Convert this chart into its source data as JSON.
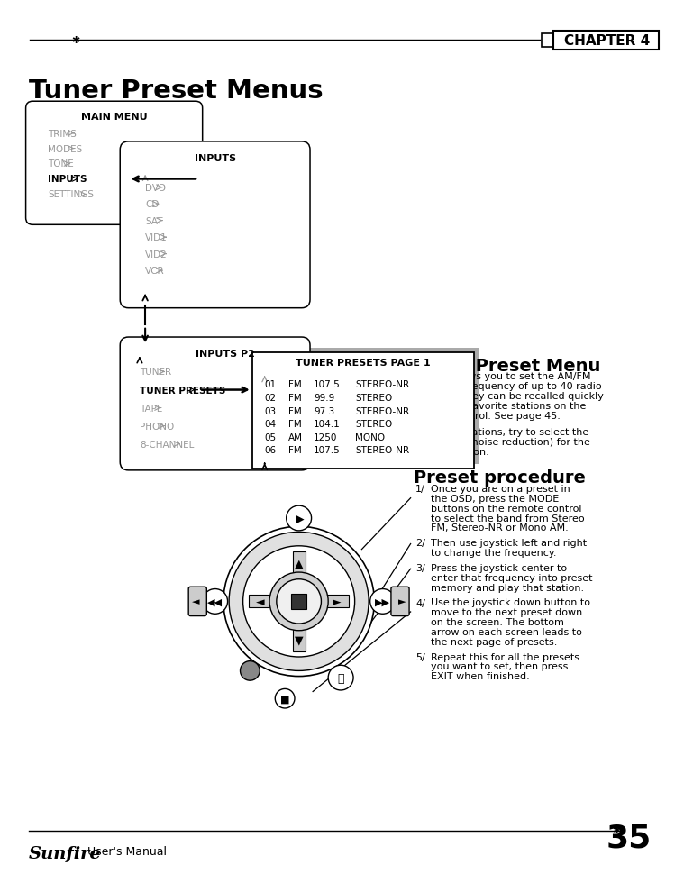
{
  "title": "Tuner Preset Menus",
  "chapter": "CHAPTER 4",
  "page_number": "35",
  "footer_brand": "Sunfire",
  "footer_text": "User's Manual",
  "main_menu_title": "MAIN MENU",
  "main_menu_items": [
    "TRIMS",
    "MODES",
    "TONE",
    "INPUTS",
    "SETTINGS"
  ],
  "inputs_title": "INPUTS",
  "inputs_items": [
    "DVD",
    "CD",
    "SAT",
    "VID1",
    "VID2",
    "VCR"
  ],
  "inputs_p2_title": "INPUTS P2",
  "inputs_p2_items": [
    "TUNER",
    "TUNER PRESETS",
    "TAPE",
    "PHONO",
    "8-CHANNEL"
  ],
  "tuner_presets_title": "TUNER PRESETS PAGE 1",
  "tuner_presets_rows": [
    [
      "01",
      "FM",
      "107.5",
      "STEREO-NR"
    ],
    [
      "02",
      "FM",
      "99.9",
      "STEREO"
    ],
    [
      "03",
      "FM",
      "97.3",
      "STEREO-NR"
    ],
    [
      "04",
      "FM",
      "104.1",
      "STEREO"
    ],
    [
      "05",
      "AM",
      "1250",
      "MONO"
    ],
    [
      "06",
      "FM",
      "107.5",
      "STEREO-NR"
    ]
  ],
  "right_title1": "Tuner Preset Menu",
  "right_para1a": "    This allows you to set the AM/FM",
  "right_para1b": "band and frequency of up to 40 radio",
  "right_para1c": "stations. They can be recalled quickly",
  "right_para1d": "and set as favorite stations on the",
  "right_para1e": "remote control. See page 45.",
  "right_para2a": "    For FM stations, try to select the",
  "right_para2b": "Stereo-NR (noise reduction) for the",
  "right_para2c": "best reception.",
  "right_title2": "Preset procedure",
  "step1_num": "1/",
  "step1_lines": [
    "Once you are on a preset in",
    "the OSD, press the MODE",
    "buttons on the remote control",
    "to select the band from Stereo",
    "FM, Stereo-NR or Mono AM."
  ],
  "step2_num": "2/",
  "step2_lines": [
    "Then use joystick left and right",
    "to change the frequency."
  ],
  "step3_num": "3/",
  "step3_lines": [
    "Press the joystick center to",
    "enter that frequency into preset",
    "memory and play that station."
  ],
  "step4_num": "4/",
  "step4_lines": [
    "Use the joystick down button to",
    "move to the next preset down",
    "on the screen. The bottom",
    "arrow on each screen leads to",
    "the next page of presets."
  ],
  "step5_num": "5/",
  "step5_lines": [
    "Repeat this for all the presets",
    "you want to set, then press",
    "EXIT when finished."
  ],
  "bg_color": "#ffffff",
  "text_color": "#000000",
  "gray_color": "#999999",
  "dark_gray": "#555555"
}
